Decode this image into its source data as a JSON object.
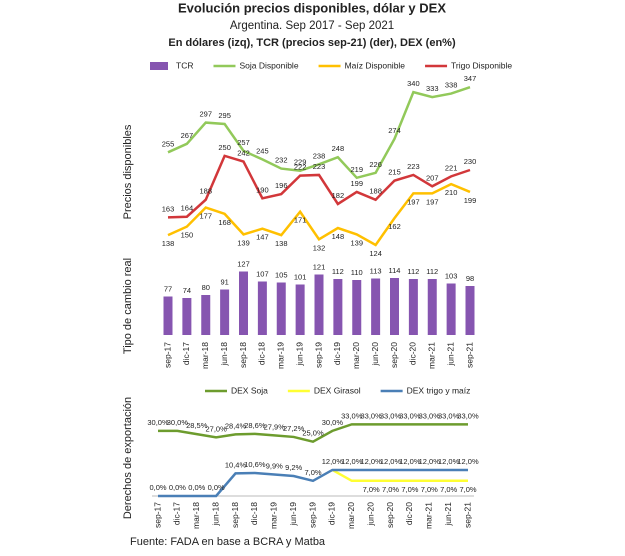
{
  "chart_data": [
    {
      "type": "combo",
      "title": "Evolución precios disponibles, dólar y DEX",
      "subtitle": "Argentina. Sep 2017 - Sep 2021",
      "subtitle2": "En dólares (izq), TCR (precios sep-21) (der), DEX (en%)",
      "ylabel": "Precios disponibles",
      "y2label": "Tipo de cambio real",
      "categories": [
        "sep-17",
        "dic-17",
        "mar-18",
        "jun-18",
        "sep-18",
        "dic-18",
        "mar-19",
        "jun-19",
        "sep-19",
        "dic-19",
        "mar-20",
        "jun-20",
        "sep-20",
        "dic-20",
        "mar-21",
        "jun-21",
        "sep-21"
      ],
      "ylim": [
        100,
        360
      ],
      "y2lim": [
        0,
        140
      ],
      "series": [
        {
          "name": "TCR",
          "type": "bar",
          "axis": "y2",
          "color": "#8655b0",
          "values": [
            77,
            74,
            80,
            91,
            127,
            107,
            105,
            101,
            121,
            112,
            110,
            113,
            114,
            112,
            112,
            103,
            98
          ]
        },
        {
          "name": "Soja Disponible",
          "type": "line",
          "color": "#92c95a",
          "values": [
            255,
            267,
            297,
            295,
            257,
            245,
            232,
            229,
            238,
            248,
            219,
            226,
            274,
            340,
            333,
            338,
            347
          ]
        },
        {
          "name": "Maíz Disponible",
          "type": "line",
          "color": "#ffc000",
          "values": [
            138,
            150,
            177,
            168,
            139,
            147,
            138,
            171,
            132,
            148,
            139,
            124,
            162,
            197,
            197,
            210,
            199
          ]
        },
        {
          "name": "Trigo Disponible",
          "type": "line",
          "color": "#d2373a",
          "values": [
            163,
            164,
            188,
            250,
            242,
            190,
            196,
            222,
            223,
            182,
            199,
            188,
            215,
            223,
            207,
            221,
            230
          ]
        }
      ]
    },
    {
      "type": "line",
      "ylabel": "Derechos de exportación",
      "categories": [
        "sep-17",
        "dic-17",
        "mar-18",
        "jun-18",
        "sep-18",
        "dic-18",
        "mar-19",
        "jun-19",
        "sep-19",
        "dic-19",
        "mar-20",
        "jun-20",
        "sep-20",
        "dic-20",
        "mar-21",
        "jun-21",
        "sep-21"
      ],
      "ylim": [
        0,
        35
      ],
      "series": [
        {
          "name": "DEX Soja",
          "color": "#6d9c2e",
          "values": [
            30.0,
            30.0,
            28.5,
            27.0,
            28.4,
            28.6,
            27.9,
            27.2,
            25.0,
            30.0,
            33.0,
            33.0,
            33.0,
            33.0,
            33.0,
            33.0,
            33.0
          ],
          "value_labels": [
            "30,0%",
            "30,0%",
            "28,5%",
            "27,0%",
            "28,4%",
            "28,6%",
            "27,9%",
            "27,2%",
            "25,0%",
            "30,0%",
            "33,0%",
            "33,0%",
            "33,0%",
            "33,0%",
            "33,0%",
            "33,0%",
            "33,0%"
          ]
        },
        {
          "name": "DEX Girasol",
          "color": "#ffff33",
          "values": [
            null,
            null,
            null,
            null,
            null,
            null,
            null,
            null,
            null,
            12.0,
            7.0,
            7.0,
            7.0,
            7.0,
            7.0,
            7.0,
            7.0
          ],
          "value_labels": [
            null,
            null,
            null,
            null,
            null,
            null,
            null,
            null,
            null,
            null,
            null,
            "7,0%",
            "7,0%",
            "7,0%",
            "7,0%",
            "7,0%",
            "7,0%"
          ]
        },
        {
          "name": "DEX trigo y maíz",
          "color": "#4a7fb6",
          "values": [
            0.0,
            0.0,
            0.0,
            0.0,
            10.4,
            10.6,
            9.9,
            9.2,
            7.0,
            12.0,
            12.0,
            12.0,
            12.0,
            12.0,
            12.0,
            12.0,
            12.0
          ],
          "value_labels": [
            "0,0%",
            "0,0%",
            "0,0%",
            "0,0%",
            "10,4%",
            "10,6%",
            "9,9%",
            "9,2%",
            "7,0%",
            "12,0%",
            "12,0%",
            "12,0%",
            "12,0%",
            "12,0%",
            "12,0%",
            "12,0%",
            "12,0%"
          ]
        }
      ]
    }
  ],
  "source": "Fuente: FADA en base a BCRA y Matba"
}
